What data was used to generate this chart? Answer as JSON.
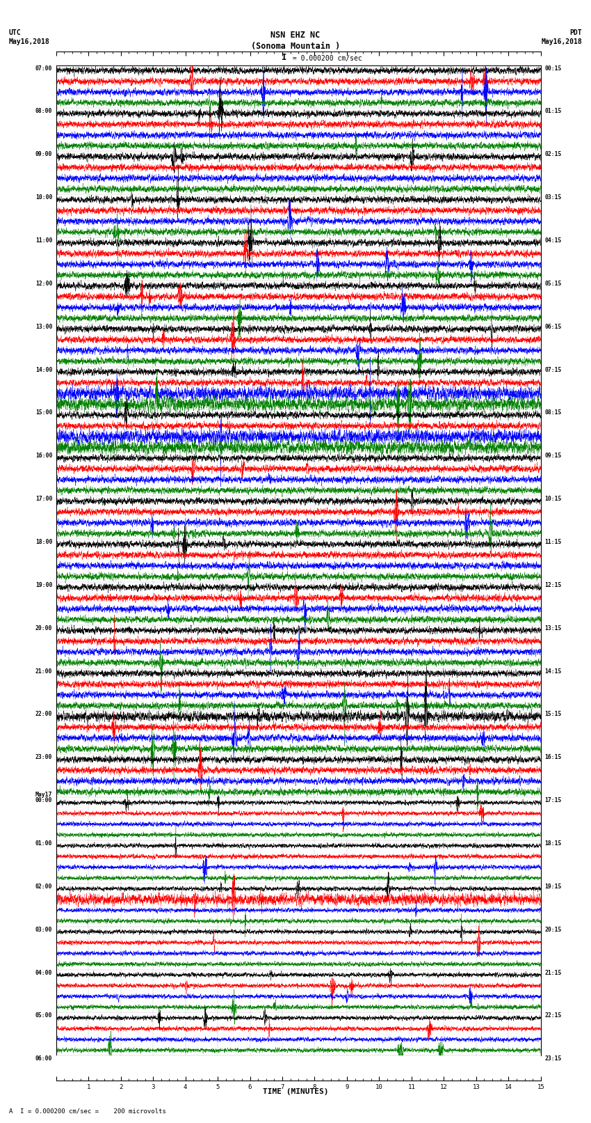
{
  "title_line1": "NSN EHZ NC",
  "title_line2": "(Sonoma Mountain )",
  "scale_label": "I = 0.000200 cm/sec",
  "left_header_line1": "UTC",
  "left_header_line2": "May16,2018",
  "right_header_line1": "PDT",
  "right_header_line2": "May16,2018",
  "bottom_label": "TIME (MINUTES)",
  "bottom_note": "A  I = 0.000200 cm/sec =    200 microvolts",
  "hour_labels_utc": [
    "07:00",
    "08:00",
    "09:00",
    "10:00",
    "11:00",
    "12:00",
    "13:00",
    "14:00",
    "15:00",
    "16:00",
    "17:00",
    "18:00",
    "19:00",
    "20:00",
    "21:00",
    "22:00",
    "23:00",
    "May17\n00:00",
    "01:00",
    "02:00",
    "03:00",
    "04:00",
    "05:00",
    "06:00"
  ],
  "hour_labels_pdt": [
    "00:15",
    "01:15",
    "02:15",
    "03:15",
    "04:15",
    "05:15",
    "06:15",
    "07:15",
    "08:15",
    "09:15",
    "10:15",
    "11:15",
    "12:15",
    "13:15",
    "14:15",
    "15:15",
    "16:15",
    "17:15",
    "18:15",
    "19:15",
    "20:15",
    "21:15",
    "22:15",
    "23:15"
  ],
  "colors": [
    "black",
    "red",
    "blue",
    "green"
  ],
  "bg_color": "white",
  "n_hours": 23,
  "traces_per_hour": 4,
  "minutes": 15,
  "fig_width": 8.5,
  "fig_height": 16.13,
  "dpi": 100
}
